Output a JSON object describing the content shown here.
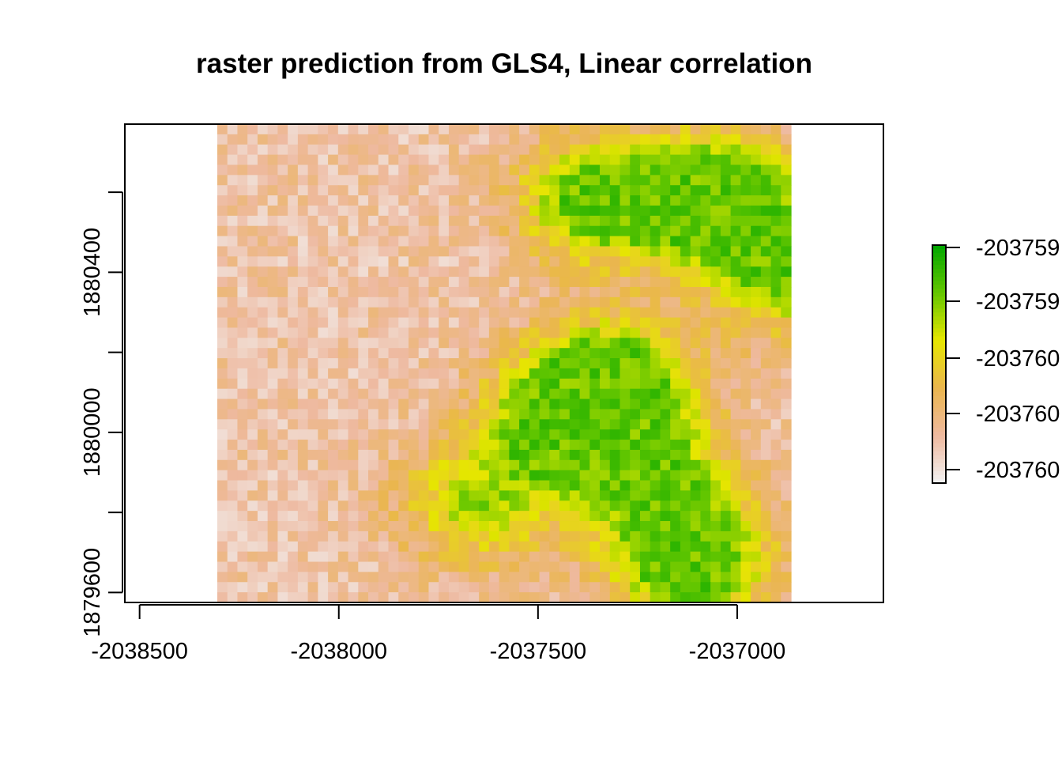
{
  "chart_data": {
    "type": "heatmap",
    "title": "raster prediction from GLS4, Linear correlation",
    "xlabel": "",
    "ylabel": "",
    "x_ticks": [
      {
        "value": -2038500,
        "label": "-2038500"
      },
      {
        "value": -2038000,
        "label": "-2038000"
      },
      {
        "value": -2037500,
        "label": "-2037500"
      },
      {
        "value": -2037000,
        "label": "-2037000"
      }
    ],
    "y_ticks": [
      {
        "value": 1879600,
        "label": "1879600"
      },
      {
        "value": 1879800,
        "label": ""
      },
      {
        "value": 1880000,
        "label": "1880000"
      },
      {
        "value": 1880200,
        "label": ""
      },
      {
        "value": 1880400,
        "label": "1880400"
      },
      {
        "value": 1880600,
        "label": ""
      }
    ],
    "xlim": [
      -2038537,
      -2036633
    ],
    "ylim": [
      1879575,
      1880770
    ],
    "raster_extent": {
      "xmin": -2038305,
      "xmax": -2036865,
      "ymin": 1879575,
      "ymax": 1880770
    },
    "grid": {
      "cols": 57,
      "rows": 47,
      "seed": 4711
    },
    "hotspots": [
      {
        "x": -2037050,
        "y": 1880580,
        "w": 1.6
      },
      {
        "x": -2037350,
        "y": 1880580,
        "w": 1.2
      },
      {
        "x": -2037320,
        "y": 1880120,
        "w": 1.4
      },
      {
        "x": -2037440,
        "y": 1880020,
        "w": 1.1
      },
      {
        "x": -2037220,
        "y": 1879900,
        "w": 1.0
      },
      {
        "x": -2037120,
        "y": 1879680,
        "w": 1.4
      },
      {
        "x": -2037650,
        "y": 1879820,
        "w": 0.8
      },
      {
        "x": -2036880,
        "y": 1880400,
        "w": 1.0
      }
    ],
    "legend": {
      "placement": "right",
      "colors": [
        "#F2F2F2",
        "#EEB99F",
        "#EAB64E",
        "#E6E600",
        "#63C600",
        "#00A600"
      ],
      "labels": [
        "-203760",
        "-203760",
        "-203760",
        "-203759",
        "-203759"
      ]
    }
  }
}
